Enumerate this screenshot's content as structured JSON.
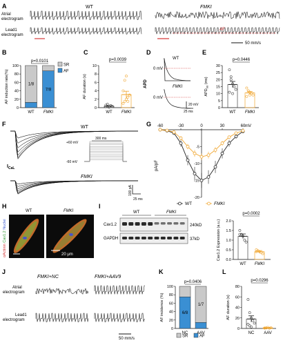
{
  "colors": {
    "orange": "#f0a630",
    "blue": "#3a8fd3",
    "grey": "#c9c9c9",
    "red": "#d63a3a",
    "black": "#111111"
  },
  "panel_letters": [
    "A",
    "B",
    "C",
    "D",
    "E",
    "F",
    "G",
    "H",
    "I",
    "J",
    "K",
    "L"
  ],
  "panelA": {
    "wt": "WT",
    "fmki": "FMKI",
    "atrial": [
      "Atrial",
      "electrogram"
    ],
    "lead1": "Lead1",
    "electrogram": "electrogram",
    "af": "AF",
    "scale": "50 mm/s"
  },
  "panelJ": {
    "left": "FMKI+NC",
    "right": "FMKI+AAV9",
    "atrial": [
      "Atrial",
      "electrogram"
    ],
    "lead1": "Lead1",
    "electrogram": "electrogram",
    "scale": "50 mm/s"
  },
  "panelF": {
    "wt": "WT",
    "fmki": "FMKI",
    "ical": "I",
    "ical_sub": "CaL",
    "p60": "+60 mV",
    "m60": "-60 mV",
    "t300": "300 ms",
    "ypA": "100 pA",
    "t25": "25 ms"
  },
  "panelD": {
    "apd": "APD",
    "wt": "WT",
    "fmki": "FMKI",
    "mv1": "0 mV",
    "mv2": "0 mV",
    "s20": "20 mV",
    "s25": "25 ms"
  },
  "panelH": {
    "wt": "WT",
    "fmki": "FMKI",
    "scale": "20 μm",
    "stain1": "αActinin",
    "stain2": "Cav1.2",
    "stain3": "Nuclei"
  },
  "panelI": {
    "wt": "WT",
    "fmki": "FMKI",
    "cav": "Cav1.2",
    "gapdh": "GAPDH",
    "kd240": "240kD",
    "kd37": "37kD"
  },
  "chart_data": [
    {
      "panel": "B",
      "type": "bar",
      "stacked": true,
      "ylabel": "AF induction rate(%)",
      "categories": [
        "WT",
        "FMKI"
      ],
      "ylim": [
        0,
        100
      ],
      "yticks": [
        0,
        20,
        40,
        60,
        80,
        100
      ],
      "series": [
        {
          "name": "SR",
          "values": [
            87.5,
            12.5
          ]
        },
        {
          "name": "AF",
          "values": [
            12.5,
            87.5
          ]
        }
      ],
      "bar_labels": [
        "1/8",
        "7/8"
      ],
      "pvalue": "p=0.0101"
    },
    {
      "panel": "C",
      "type": "bar",
      "ylabel": "AF duration (s)",
      "categories": [
        "WT",
        "FMKI"
      ],
      "ylim": [
        0,
        10
      ],
      "yticks": [
        0,
        2,
        4,
        6,
        8,
        10
      ],
      "values": [
        0.35,
        3.1
      ],
      "errors": [
        0.1,
        0.8
      ],
      "points": [
        [
          0.2,
          0.3,
          0.2,
          0.5,
          0.3,
          0.6,
          0.8,
          0.1
        ],
        [
          1.0,
          1.5,
          2.0,
          2.5,
          3.0,
          4.0,
          6.5,
          7.5,
          1.5
        ]
      ],
      "pvalue": "p=0.0039"
    },
    {
      "panel": "E",
      "type": "bar",
      "ylabel": "APD",
      "ylabel_sub": "90",
      "ylabel_unit": " (ms)",
      "categories": [
        "WT",
        "FMKI"
      ],
      "ylim": [
        0,
        30
      ],
      "yticks": [
        0,
        5,
        10,
        15,
        20,
        25,
        30
      ],
      "values": [
        16.5,
        10.5
      ],
      "errors": [
        2.2,
        1.1
      ],
      "points": [
        [
          27,
          22,
          17,
          15,
          13,
          11,
          20,
          10
        ],
        [
          14,
          12,
          11,
          10,
          9,
          8,
          12,
          9
        ]
      ],
      "pvalue": "p=0.0446"
    },
    {
      "panel": "G",
      "type": "line",
      "xlabel": "",
      "ylabel": "pA/pF",
      "xticks": [
        -60,
        -30,
        0,
        30,
        60
      ],
      "x_unit": "mV",
      "yticks": [
        -20,
        -15,
        -10,
        -5,
        0
      ],
      "ylim": [
        -20,
        0
      ],
      "x": [
        -60,
        -50,
        -40,
        -30,
        -20,
        -10,
        0,
        10,
        20,
        30,
        40,
        50,
        60
      ],
      "series": [
        {
          "name": "WT",
          "values": [
            0,
            -0.3,
            -1,
            -4,
            -9,
            -13,
            -15,
            -14,
            -11,
            -7,
            -4,
            -2,
            -0.5
          ],
          "errors": [
            0,
            0.3,
            0.5,
            1,
            1.5,
            2,
            2.2,
            2,
            1.8,
            1.5,
            1,
            0.6,
            0.4
          ]
        },
        {
          "name": "FMKI",
          "values": [
            0,
            -0.2,
            -0.7,
            -2.5,
            -5,
            -7,
            -8,
            -7.5,
            -6,
            -4,
            -2.2,
            -1,
            -0.3
          ],
          "errors": [
            0,
            0.2,
            0.3,
            0.6,
            0.8,
            1,
            1,
            1,
            0.9,
            0.7,
            0.5,
            0.3,
            0.2
          ]
        }
      ]
    },
    {
      "panel": "I",
      "type": "bar",
      "ylabel": "Cav1.2 Expression (a.u.)",
      "categories": [
        "WT",
        "FMKI"
      ],
      "ylim": [
        0,
        2.0
      ],
      "yticks": [
        0.0,
        0.5,
        1.0,
        1.5,
        2.0
      ],
      "values": [
        1.2,
        0.4
      ],
      "errors": [
        0.12,
        0.06
      ],
      "points": [
        [
          1.5,
          1.3,
          1.2,
          1.0,
          0.9,
          1.3
        ],
        [
          0.5,
          0.45,
          0.4,
          0.35,
          0.3,
          0.4
        ]
      ],
      "pvalue": "p=0.0002"
    },
    {
      "panel": "K",
      "type": "bar",
      "stacked": true,
      "ylabel": "AF incidence (%)",
      "categories": [
        "NC",
        "AAV"
      ],
      "ylim": [
        0,
        100
      ],
      "yticks": [
        0,
        20,
        40,
        60,
        80,
        100
      ],
      "series": [
        {
          "name": "SR",
          "values": [
            25,
            85.7
          ]
        },
        {
          "name": "AF",
          "values": [
            75,
            14.3
          ]
        }
      ],
      "bar_labels": [
        "6/8",
        "1/7"
      ],
      "pvalue": "p=0.0406"
    },
    {
      "panel": "L",
      "type": "bar",
      "ylabel": "AF duration (s)",
      "categories": [
        "NC",
        "AAV"
      ],
      "ylim": [
        0,
        80
      ],
      "yticks": [
        0,
        20,
        40,
        60,
        80
      ],
      "values": [
        18,
        1.2
      ],
      "errors": [
        6,
        0.6
      ],
      "points": [
        [
          55,
          30,
          20,
          15,
          10,
          8,
          5,
          3
        ],
        [
          0.5,
          1,
          2,
          0.3,
          1.5,
          0.8,
          1
        ]
      ],
      "pvalue": "p=0.0296"
    }
  ]
}
